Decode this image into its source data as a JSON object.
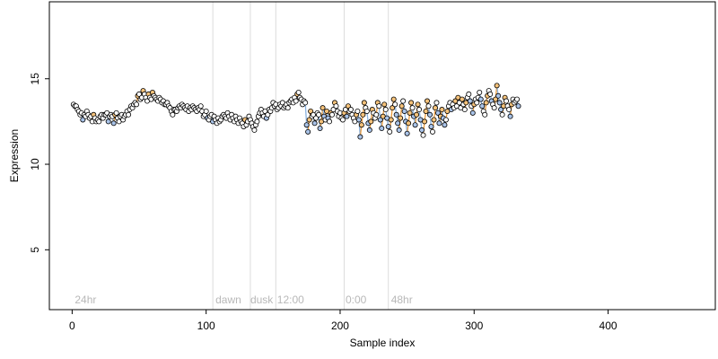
{
  "chart_data": {
    "type": "scatter",
    "title": "",
    "xlabel": "Sample index",
    "ylabel": "Expression",
    "xlim": [
      -17,
      480
    ],
    "ylim": [
      1.5,
      19.5
    ],
    "xticks": [
      0,
      100,
      200,
      300,
      400
    ],
    "yticks": [
      5,
      10,
      15
    ],
    "x_tick_labels": [
      "0",
      "100",
      "200",
      "300",
      "400"
    ],
    "y_tick_labels": [
      "5",
      "10",
      "15"
    ],
    "grid": false,
    "legend": "none",
    "point_fill_colors": [
      "#ffffff",
      "#f5c27a",
      "#a9c3e8"
    ],
    "line_colors": [
      "#e89a3c",
      "#8ab2e0",
      "#bdbdbd"
    ],
    "point_stroke_color": "#000000",
    "vertical_lines": [
      105,
      133,
      152,
      203,
      236
    ],
    "region_labels": [
      {
        "text": "24hr",
        "x": 2
      },
      {
        "text": "dawn",
        "x": 107
      },
      {
        "text": "dusk",
        "x": 133
      },
      {
        "text": "12:00",
        "x": 153
      },
      {
        "text": "0:00",
        "x": 204
      },
      {
        "text": "48hr",
        "x": 238
      }
    ],
    "series": [
      {
        "x_start": 1,
        "values": [
          13.5,
          13.4,
          13.4,
          13.2,
          13.1,
          12.9,
          13.0,
          12.6,
          12.9,
          12.8,
          13.1,
          12.9,
          12.7,
          12.8,
          12.5,
          12.9,
          12.7,
          12.5,
          12.6,
          12.5,
          12.8,
          12.9,
          12.7,
          12.9,
          12.9,
          13.0,
          12.5,
          12.8,
          12.9,
          12.8,
          12.4,
          12.9,
          13.0,
          12.7,
          12.5,
          12.8,
          12.9,
          12.6,
          12.8,
          12.9,
          13.1,
          12.9,
          13.2,
          13.4,
          13.3,
          13.5,
          13.6,
          13.5,
          14.0,
          14.1,
          13.8,
          13.9,
          14.3,
          14.1,
          13.9,
          13.7,
          14.1,
          13.9,
          13.8,
          14.2,
          14.0,
          13.9,
          13.8,
          13.7,
          13.9,
          13.8,
          13.6,
          13.7,
          13.5,
          13.5,
          13.6,
          13.4,
          13.3,
          13.1,
          12.9,
          13.2,
          13.2,
          13.1,
          13.3,
          13.4,
          13.3,
          13.5,
          13.4,
          13.3,
          13.2,
          13.4,
          13.1,
          13.3,
          13.2,
          13.4,
          13.3,
          13.2,
          13.1,
          13.3,
          13.2,
          13.4,
          13.1,
          12.8,
          12.9,
          13.1,
          12.7,
          12.6,
          12.8,
          12.9,
          12.5,
          12.8,
          12.6,
          12.4,
          12.7,
          12.5,
          12.6,
          12.8,
          12.9,
          12.8,
          12.7,
          13.0,
          12.8,
          12.6,
          12.9,
          12.7,
          12.5,
          12.8,
          12.6,
          12.4,
          12.7,
          12.5,
          12.4,
          12.2,
          12.6,
          12.3,
          12.5,
          12.8,
          12.6,
          12.4,
          12.2,
          12.0,
          12.3,
          12.5,
          12.8,
          13.0,
          13.2,
          13.0,
          12.8,
          13.1,
          12.7,
          12.9,
          13.2,
          13.1,
          13.3,
          13.6,
          13.4,
          13.5,
          13.2,
          13.3,
          13.5,
          13.4,
          13.6,
          13.3,
          13.4,
          13.5,
          13.3,
          13.6,
          13.7,
          13.8,
          13.6,
          13.9,
          13.7,
          14.1,
          14.2,
          13.9,
          13.8,
          13.5,
          13.7,
          13.6,
          12.3,
          11.9,
          12.6,
          13.1,
          12.8,
          12.9,
          12.4,
          12.7,
          13.0,
          12.9,
          12.1,
          12.5,
          13.3,
          12.8,
          12.6,
          13.1,
          12.7,
          12.5,
          13.0,
          12.9,
          13.2,
          13.6,
          13.4,
          13.1,
          12.8,
          13.0,
          12.7,
          12.6,
          13.0,
          13.2,
          12.8,
          13.4,
          13.1,
          13.2,
          12.9,
          12.7,
          12.5,
          12.9,
          13.1,
          12.6,
          11.6,
          12.3,
          12.9,
          13.6,
          13.3,
          13.1,
          12.4,
          12.0,
          12.5,
          13.2,
          13.0,
          12.7,
          12.9,
          13.6,
          13.4,
          12.6,
          12.1,
          12.8,
          13.5,
          13.2,
          12.7,
          12.2,
          11.9,
          12.6,
          13.3,
          13.8,
          13.5,
          12.9,
          12.4,
          12.0,
          12.7,
          13.4,
          13.7,
          13.1,
          12.5,
          11.8,
          12.4,
          13.0,
          13.6,
          13.3,
          12.8,
          12.3,
          12.9,
          13.5,
          13.2,
          12.6,
          12.0,
          11.7,
          12.5,
          13.1,
          13.7,
          13.4,
          12.9,
          12.2,
          11.9,
          12.6,
          13.3,
          13.6,
          13.0,
          12.4,
          12.8,
          13.2,
          12.7,
          12.3,
          12.6,
          13.1,
          13.4,
          13.6,
          13.2,
          13.5,
          13.3,
          13.7,
          13.4,
          13.9,
          13.6,
          13.3,
          13.8,
          13.5,
          13.2,
          13.6,
          13.9,
          14.1,
          13.7,
          13.4,
          13.0,
          13.5,
          13.8,
          13.6,
          13.9,
          14.2,
          13.8,
          13.4,
          13.1,
          12.9,
          13.6,
          14.0,
          14.3,
          14.1,
          13.7,
          13.5,
          13.3,
          13.8,
          14.6,
          14.0,
          13.6,
          13.2,
          12.9,
          13.4,
          13.9,
          13.7,
          13.4,
          13.2,
          12.8,
          13.5,
          13.8,
          13.6,
          13.7,
          13.8,
          13.4
        ]
      }
    ]
  }
}
